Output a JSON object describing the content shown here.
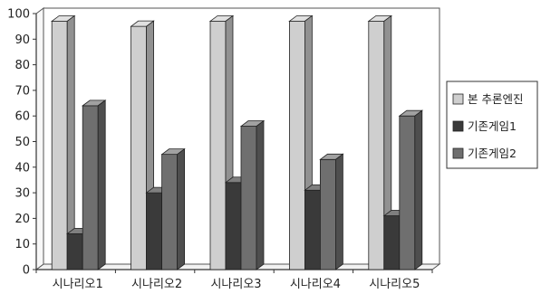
{
  "chart_data": {
    "type": "bar",
    "style": "3d-clustered-column",
    "categories": [
      "시나리오1",
      "시나리오2",
      "시나리오3",
      "시나리오4",
      "시나리오5"
    ],
    "series": [
      {
        "name": "본 추론엔진",
        "values": [
          97,
          95,
          97,
          97,
          97
        ],
        "color": "#cfcfcf"
      },
      {
        "name": "기존게임1",
        "values": [
          14,
          30,
          34,
          31,
          21
        ],
        "color": "#3a3a3a"
      },
      {
        "name": "기존게임2",
        "values": [
          64,
          45,
          56,
          43,
          60
        ],
        "color": "#6f6f6f"
      }
    ],
    "ylim": [
      0,
      100
    ],
    "yticks": [
      "0",
      "10",
      "20",
      "30",
      "40",
      "50",
      "60",
      "70",
      "80",
      "90",
      "100"
    ],
    "legend_position": "right",
    "grid": false
  }
}
